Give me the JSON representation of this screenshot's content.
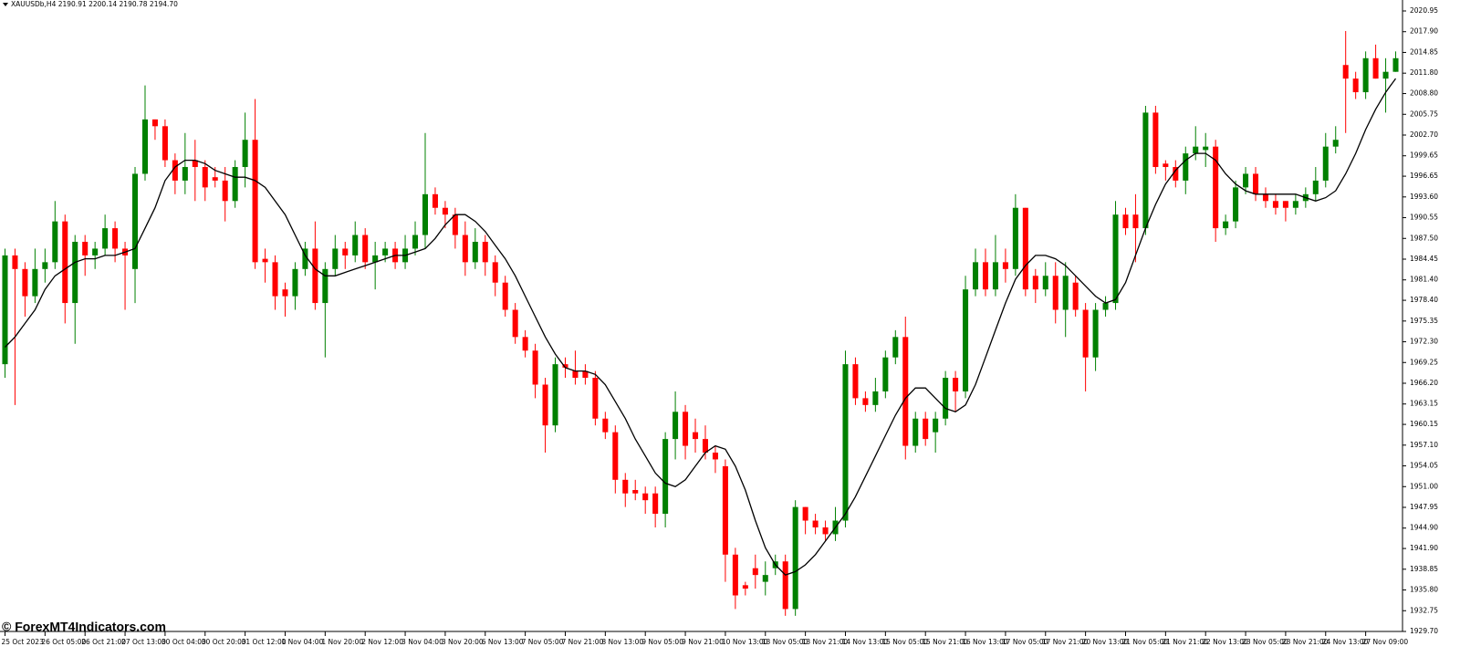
{
  "chart_data": {
    "type": "candlestick",
    "title": "XAUUSDb,H4  2190.91 2200.14 2190.78 2194.70",
    "watermark": "© ForexMT4Indicators.com",
    "up_color": "#008000",
    "down_color": "#ff0000",
    "open": [
      1969,
      1985,
      1983,
      1979,
      1983,
      1984,
      1990,
      1978,
      1987,
      1985,
      1986,
      1989,
      1986,
      1983,
      1997,
      2005,
      2004,
      1999,
      1996,
      1999,
      1998,
      1996.5,
      1996,
      1993,
      1998,
      2002,
      1984.5,
      1984,
      1980,
      1979,
      1983,
      1986,
      1978,
      1983,
      1986,
      1985,
      1988,
      1984,
      1985,
      1986,
      1984,
      1986,
      1988,
      1994,
      1992,
      1991,
      1988,
      1984,
      1987,
      1984,
      1981,
      1977,
      1973,
      1971,
      1966,
      1960,
      1969,
      1968,
      1968,
      1967,
      1961,
      1959,
      1952,
      1950.5,
      1950,
      1950,
      1947,
      1958,
      1962,
      1959,
      1958,
      1956,
      1954,
      1941,
      1936.5,
      1939,
      1937,
      1939,
      1940,
      1933,
      1948,
      1946,
      1945,
      1944,
      1946,
      1969,
      1964,
      1963,
      1965,
      1970,
      1973,
      1957,
      1961,
      1959,
      1961,
      1967,
      1965,
      1980,
      1984,
      1980,
      1984,
      1983,
      1992,
      1982,
      1980,
      1982,
      1977,
      1981,
      1977,
      1970,
      1977,
      1978,
      1991,
      1991,
      1989,
      2006,
      1998.5,
      1998,
      1996,
      2000,
      2000.5,
      2001,
      1989,
      1990,
      1995,
      1997,
      1994,
      1993,
      1993,
      1992,
      1993,
      1994,
      1996,
      2001,
      2013,
      2011,
      2009,
      2014,
      2011,
      2012
    ],
    "high": [
      1986,
      1986,
      1984,
      1986,
      1986,
      1993,
      1991,
      1988,
      1988,
      1987,
      1991,
      1990,
      1987,
      1998,
      2010,
      2005,
      2005,
      2000,
      2003,
      2002,
      1999,
      1998,
      1998,
      1999,
      2006,
      2008,
      1986,
      1985,
      1981,
      1984,
      1987,
      1990,
      1984,
      1988,
      1987,
      1990,
      1989,
      1987,
      1987,
      1987,
      1988,
      1990,
      2003,
      1995,
      1993,
      1992,
      1990,
      1989,
      1988,
      1985,
      1982,
      1978,
      1974,
      1972,
      1967,
      1970,
      1970,
      1971,
      1969,
      1968,
      1962,
      1960,
      1953,
      1952,
      1951,
      1951,
      1959,
      1965,
      1963,
      1961,
      1960,
      1957,
      1955,
      1942,
      1937,
      1941,
      1940,
      1941,
      1941,
      1949,
      1948,
      1947,
      1946,
      1948,
      1971,
      1970,
      1965,
      1967,
      1971,
      1974,
      1976,
      1962,
      1962,
      1962,
      1968,
      1968,
      1982,
      1986,
      1986,
      1988,
      1986,
      1994,
      1992,
      1983,
      1984,
      1984,
      1984,
      1982,
      1978,
      1978,
      1979,
      1993,
      1992,
      1994,
      2007,
      2007,
      1999,
      1999,
      2001,
      2004,
      2003,
      2002,
      1991,
      1996,
      1998,
      1998,
      1995,
      1994,
      1993,
      1994,
      1995,
      1998,
      2003,
      2004,
      2018,
      2012,
      2015,
      2016,
      2014,
      2015
    ],
    "low": [
      1967,
      1963,
      1976,
      1978,
      1981,
      1983,
      1975,
      1972,
      1982,
      1983,
      1985,
      1984,
      1977,
      1978,
      1996,
      2002,
      1998,
      1994,
      1994,
      1993,
      1993,
      1995,
      1990,
      1992,
      1995,
      1983,
      1981,
      1977,
      1976,
      1977,
      1982,
      1977,
      1970,
      1982,
      1983,
      1984,
      1983,
      1980,
      1984,
      1983,
      1983,
      1985,
      1986,
      1991,
      1989,
      1986,
      1982,
      1983,
      1982,
      1979,
      1976,
      1972,
      1970,
      1964,
      1956,
      1959,
      1967,
      1966,
      1966,
      1960,
      1958,
      1950,
      1948,
      1949,
      1947,
      1945,
      1945,
      1955,
      1955,
      1956,
      1955,
      1953,
      1937,
      1933,
      1935,
      1936,
      1935,
      1938,
      1932,
      1932,
      1944,
      1944,
      1943,
      1943,
      1945,
      1963,
      1962,
      1962,
      1964,
      1969,
      1955,
      1956,
      1957,
      1956,
      1960,
      1962,
      1964,
      1979,
      1979,
      1979,
      1981,
      1982,
      1979,
      1978,
      1979,
      1975,
      1973,
      1976,
      1965,
      1968,
      1976,
      1977,
      1988,
      1984,
      1988,
      1997,
      1996,
      1995,
      1994,
      1999,
      1998,
      1987,
      1988,
      1989,
      1994,
      1993,
      1992,
      1991,
      1990,
      1991,
      1992,
      1993,
      1995,
      2000,
      2003,
      2008,
      2008,
      2011,
      2006,
      2012
    ],
    "close": [
      1985,
      1983,
      1979,
      1983,
      1984,
      1990,
      1978,
      1987,
      1985,
      1986,
      1989,
      1986,
      1985,
      1997,
      2005,
      2004,
      1999,
      1996,
      1998,
      1998,
      1995,
      1996,
      1993,
      1998,
      2002,
      1984,
      1984,
      1979,
      1979,
      1983,
      1986,
      1978,
      1983,
      1986,
      1985,
      1988,
      1984,
      1985,
      1986,
      1984,
      1986,
      1988,
      1994,
      1992,
      1991,
      1988,
      1984,
      1987,
      1984,
      1981,
      1977,
      1973,
      1971,
      1966,
      1960,
      1969,
      1968.5,
      1967,
      1967,
      1961,
      1959,
      1952,
      1950,
      1950,
      1949,
      1947,
      1958,
      1962,
      1957,
      1958,
      1956,
      1955,
      1941,
      1935,
      1936,
      1938,
      1938,
      1940,
      1933,
      1948,
      1946,
      1945,
      1944,
      1946,
      1969,
      1964,
      1963,
      1965,
      1970,
      1973,
      1957,
      1961,
      1958,
      1961,
      1967,
      1965,
      1980,
      1984,
      1980,
      1984,
      1983,
      1992,
      1980,
      1980,
      1982,
      1977,
      1982,
      1977,
      1970,
      1977,
      1978,
      1991,
      1989,
      1989,
      2006,
      1998,
      1998,
      1996,
      2000,
      2001,
      2001,
      1989,
      1990,
      1995,
      1997,
      1994,
      1993,
      1992,
      1992,
      1993,
      1994,
      1996,
      2001,
      2002,
      2011,
      2009,
      2014,
      2011,
      2012,
      2014
    ],
    "ma": {
      "color": "#000000",
      "values": [
        1971.5,
        1973,
        1975,
        1977,
        1980,
        1982,
        1983,
        1984,
        1984.5,
        1984.5,
        1985,
        1985,
        1985.5,
        1986,
        1989,
        1992,
        1996,
        1998,
        1999,
        1999,
        1998.5,
        1997.5,
        1997,
        1996.5,
        1996.5,
        1996,
        1995,
        1993,
        1991,
        1988,
        1985,
        1983,
        1982,
        1982,
        1982.5,
        1983,
        1983.5,
        1984,
        1984.5,
        1985,
        1985,
        1985.5,
        1986,
        1987.5,
        1989.5,
        1991,
        1991,
        1990,
        1988.5,
        1986.5,
        1984.5,
        1982,
        1979,
        1976,
        1973,
        1970.5,
        1968.5,
        1968,
        1968,
        1967.5,
        1966,
        1963.5,
        1961,
        1958,
        1955.5,
        1953,
        1951.5,
        1951,
        1952,
        1954,
        1956,
        1957,
        1956.5,
        1954,
        1950.5,
        1946,
        1942,
        1939.5,
        1938,
        1938.5,
        1939.5,
        1941,
        1943,
        1945,
        1947,
        1949.5,
        1952.5,
        1955.5,
        1958.5,
        1961.5,
        1964,
        1965.5,
        1965.5,
        1964,
        1962.5,
        1962,
        1963,
        1966,
        1970,
        1974,
        1978,
        1981.5,
        1983.5,
        1985,
        1985,
        1984.5,
        1983.5,
        1982,
        1980.5,
        1979,
        1978,
        1978.5,
        1981,
        1985,
        1989,
        1992.5,
        1995.5,
        1997.5,
        1999,
        2000,
        2000,
        1999,
        1997,
        1995.5,
        1994.5,
        1994,
        1994,
        1994,
        1994,
        1994,
        1993.5,
        1993,
        1993.5,
        1994.5,
        1997,
        2000,
        2003.5,
        2006.5,
        2009,
        2011
      ]
    },
    "xlim": [
      -0.5,
      139.5
    ],
    "xticks": [
      {
        "value": 0,
        "label": "25 Oct 2023"
      },
      {
        "value": 4,
        "label": "26 Oct 05:00"
      },
      {
        "value": 8,
        "label": "26 Oct 21:00"
      },
      {
        "value": 12,
        "label": "27 Oct 13:00"
      },
      {
        "value": 16,
        "label": "30 Oct 04:00"
      },
      {
        "value": 20,
        "label": "30 Oct 20:00"
      },
      {
        "value": 24,
        "label": "31 Oct 12:00"
      },
      {
        "value": 28,
        "label": "1 Nov 04:00"
      },
      {
        "value": 32,
        "label": "1 Nov 20:00"
      },
      {
        "value": 36,
        "label": "2 Nov 12:00"
      },
      {
        "value": 40,
        "label": "3 Nov 04:00"
      },
      {
        "value": 44,
        "label": "3 Nov 20:00"
      },
      {
        "value": 48,
        "label": "6 Nov 13:00"
      },
      {
        "value": 52,
        "label": "7 Nov 05:00"
      },
      {
        "value": 56,
        "label": "7 Nov 21:00"
      },
      {
        "value": 60,
        "label": "8 Nov 13:00"
      },
      {
        "value": 64,
        "label": "9 Nov 05:00"
      },
      {
        "value": 68,
        "label": "9 Nov 21:00"
      },
      {
        "value": 72,
        "label": "10 Nov 13:00"
      },
      {
        "value": 76,
        "label": "13 Nov 05:00"
      },
      {
        "value": 80,
        "label": "13 Nov 21:00"
      },
      {
        "value": 84,
        "label": "14 Nov 13:00"
      },
      {
        "value": 88,
        "label": "15 Nov 05:00"
      },
      {
        "value": 92,
        "label": "15 Nov 21:00"
      },
      {
        "value": 96,
        "label": "16 Nov 13:00"
      },
      {
        "value": 100,
        "label": "17 Nov 05:00"
      },
      {
        "value": 104,
        "label": "17 Nov 21:00"
      },
      {
        "value": 108,
        "label": "20 Nov 13:00"
      },
      {
        "value": 112,
        "label": "21 Nov 05:00"
      },
      {
        "value": 116,
        "label": "21 Nov 21:00"
      },
      {
        "value": 120,
        "label": "22 Nov 13:00"
      },
      {
        "value": 124,
        "label": "23 Nov 05:00"
      },
      {
        "value": 128,
        "label": "23 Nov 21:00"
      },
      {
        "value": 132,
        "label": "24 Nov 13:00"
      },
      {
        "value": 136,
        "label": "27 Nov 09:00"
      }
    ],
    "ylim": [
      1929.7,
      2022.56
    ],
    "yticks": [
      2020.95,
      {
        "value": 2017.9,
        "label": "2017.90"
      },
      2014.85,
      {
        "value": 2011.8,
        "label": "2011.80"
      },
      {
        "value": 2008.8,
        "label": "2008.80"
      },
      2005.75,
      {
        "value": 2002.7,
        "label": "2002.70"
      },
      1999.65,
      1996.65,
      {
        "value": 1993.6,
        "label": "1993.60"
      },
      1990.55,
      {
        "value": 1987.5,
        "label": "1987.50"
      },
      1984.45,
      {
        "value": 1981.4,
        "label": "1981.40"
      },
      {
        "value": 1978.4,
        "label": "1978.40"
      },
      1975.35,
      {
        "value": 1972.3,
        "label": "1972.30"
      },
      1969.25,
      {
        "value": 1966.2,
        "label": "1966.20"
      },
      1963.15,
      1960.15,
      {
        "value": 1957.1,
        "label": "1957.10"
      },
      1954.05,
      {
        "value": 1951,
        "label": "1951.00"
      },
      1947.95,
      {
        "value": 1944.9,
        "label": "1944.90"
      },
      {
        "value": 1941.9,
        "label": "1941.90"
      },
      1938.85,
      {
        "value": 1935.8,
        "label": "1935.80"
      },
      1932.75,
      {
        "value": 1929.7,
        "label": "1929.70"
      }
    ]
  }
}
